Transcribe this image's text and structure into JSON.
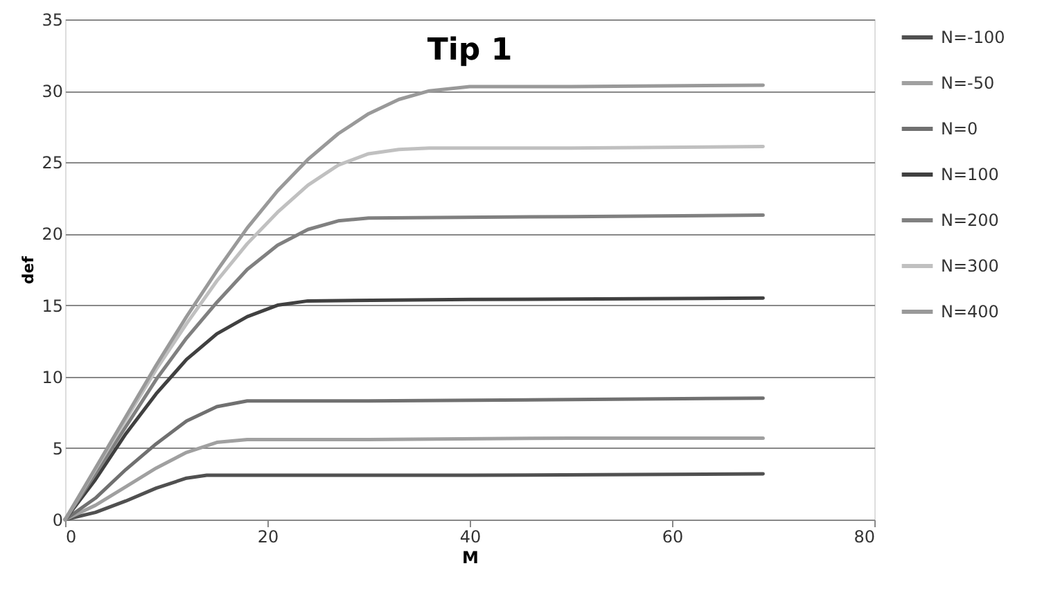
{
  "chart_data": {
    "type": "line",
    "title": "Tip 1",
    "xlabel": "M",
    "ylabel": "def",
    "xlim": [
      0,
      80
    ],
    "xticks": [
      0,
      20,
      40,
      60,
      80
    ],
    "ylim": [
      0,
      35
    ],
    "yticks": [
      0,
      5,
      10,
      15,
      20,
      25,
      30,
      35
    ],
    "grid": "y",
    "legend": "right",
    "marker": "none",
    "line_style": "solid",
    "series": [
      {
        "name": "N=-100",
        "color": "#505050",
        "x": [
          0,
          3,
          6,
          9,
          12,
          14,
          20,
          40,
          69
        ],
        "values": [
          0,
          0.5,
          1.3,
          2.2,
          2.9,
          3.1,
          3.1,
          3.1,
          3.2
        ]
      },
      {
        "name": "N=-50",
        "color": "#a0a0a0",
        "x": [
          0,
          3,
          6,
          9,
          12,
          15,
          18,
          30,
          50,
          69
        ],
        "values": [
          0,
          1,
          2.3,
          3.6,
          4.7,
          5.4,
          5.6,
          5.6,
          5.7,
          5.7
        ]
      },
      {
        "name": "N=0",
        "color": "#707070",
        "x": [
          0,
          3,
          6,
          9,
          12,
          15,
          18,
          30,
          50,
          69
        ],
        "values": [
          0,
          1.5,
          3.5,
          5.3,
          6.9,
          7.9,
          8.3,
          8.3,
          8.4,
          8.5
        ]
      },
      {
        "name": "N=100",
        "color": "#404040",
        "x": [
          0,
          3,
          6,
          9,
          12,
          15,
          18,
          21,
          24,
          40,
          69
        ],
        "values": [
          0,
          2.8,
          6,
          8.8,
          11.2,
          13,
          14.2,
          15,
          15.3,
          15.4,
          15.5
        ]
      },
      {
        "name": "N=200",
        "color": "#808080",
        "x": [
          0,
          3,
          6,
          9,
          12,
          15,
          18,
          21,
          24,
          27,
          30,
          50,
          69
        ],
        "values": [
          0,
          3.2,
          6.5,
          9.8,
          12.7,
          15.2,
          17.5,
          19.2,
          20.3,
          20.9,
          21.1,
          21.2,
          21.3
        ]
      },
      {
        "name": "N=300",
        "color": "#c0c0c0",
        "x": [
          0,
          3,
          6,
          9,
          12,
          15,
          18,
          21,
          24,
          27,
          30,
          33,
          36,
          50,
          69
        ],
        "values": [
          0,
          3.5,
          7,
          10.5,
          13.7,
          16.7,
          19.3,
          21.5,
          23.4,
          24.8,
          25.6,
          25.9,
          26,
          26,
          26.1
        ]
      },
      {
        "name": "N=400",
        "color": "#999999",
        "x": [
          0,
          3,
          6,
          9,
          12,
          15,
          18,
          21,
          24,
          27,
          30,
          33,
          36,
          40,
          50,
          69
        ],
        "values": [
          0,
          3.6,
          7.2,
          10.8,
          14.2,
          17.4,
          20.4,
          23,
          25.2,
          27,
          28.4,
          29.4,
          30,
          30.3,
          30.3,
          30.4
        ]
      }
    ]
  }
}
